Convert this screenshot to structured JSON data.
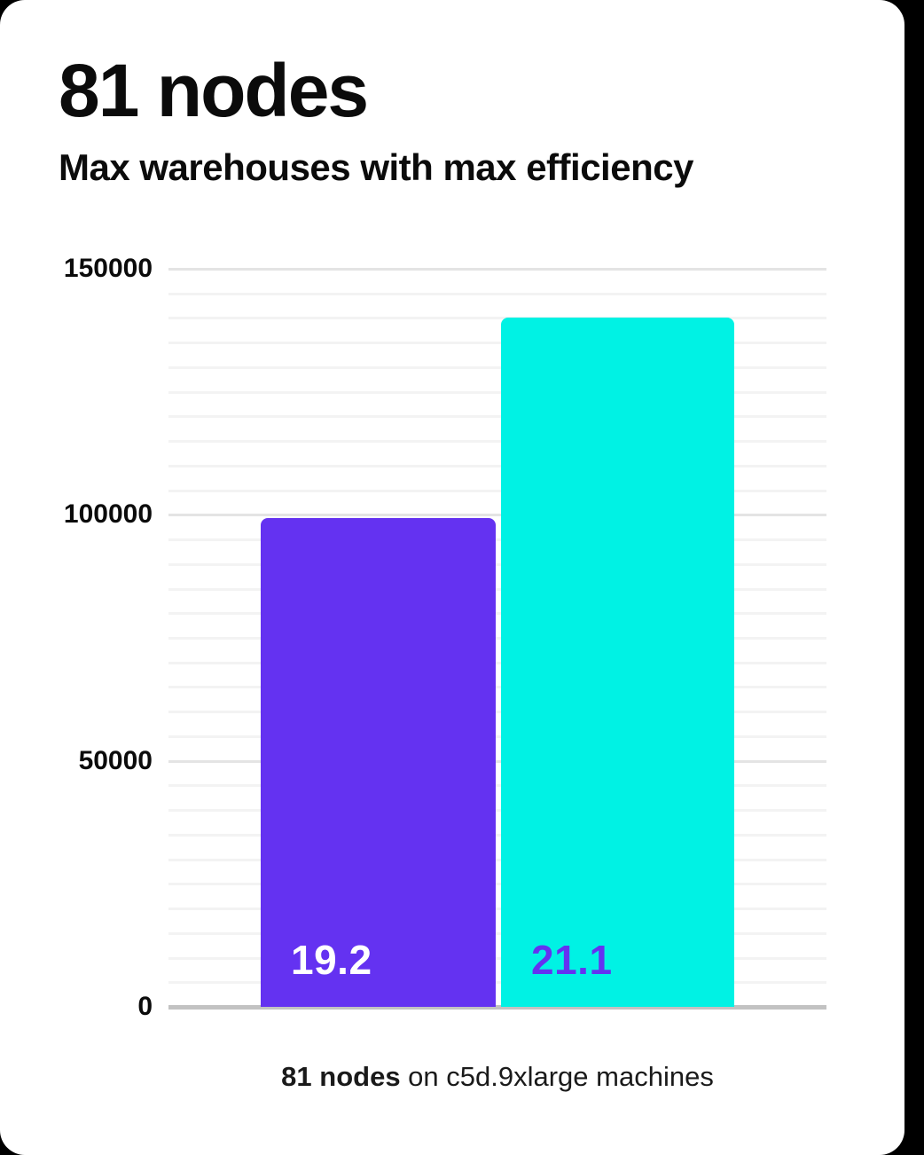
{
  "page": {
    "background_color": "#000000",
    "card_color": "#ffffff"
  },
  "chart_data": {
    "type": "bar",
    "title": "81 nodes",
    "subtitle": "Max warehouses with max efficiency",
    "caption": {
      "bold": "81 nodes",
      "rest": " on c5d.9xlarge machines"
    },
    "xlabel": "",
    "ylabel": "",
    "ylim": [
      0,
      150000
    ],
    "yticks": [
      0,
      50000,
      100000,
      150000
    ],
    "minor_grid_step": 5000,
    "grid": true,
    "legend": false,
    "bars": [
      {
        "name": "left-bar",
        "value": 99300,
        "label": "19.2",
        "color": "#6432f1",
        "label_color": "#ffffff"
      },
      {
        "name": "right-bar",
        "value": 140100,
        "label": "21.1",
        "color": "#00f2e4",
        "label_color": "#6432f1"
      }
    ],
    "colors": {
      "baseline": "#c2c2c2",
      "major_grid": "#e4e4e4",
      "minor_grid": "#f3f3f3"
    }
  }
}
